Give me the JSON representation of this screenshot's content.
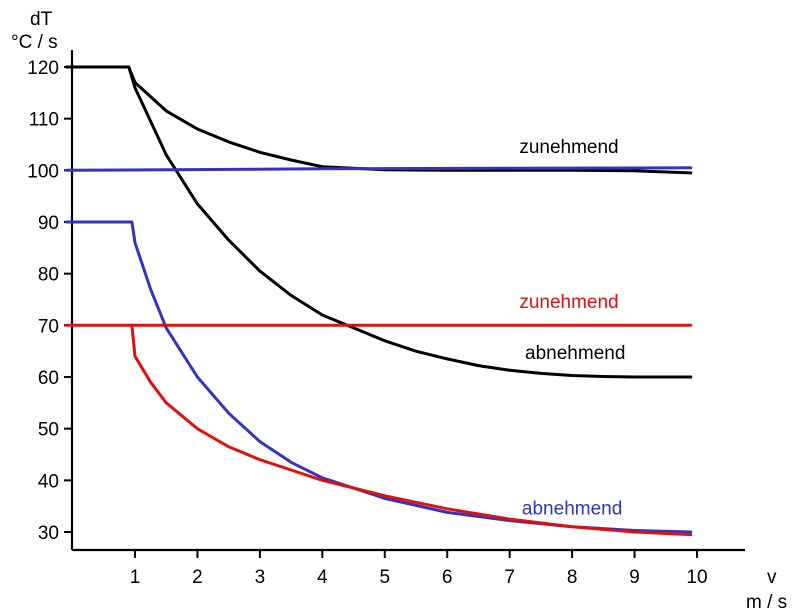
{
  "chart_data": {
    "type": "line",
    "y_unit_top": "dT",
    "y_unit_bottom": "°C / s",
    "x_unit_top": "v",
    "x_unit_bottom": "m / s",
    "xlim": [
      0,
      10.6
    ],
    "ylim": [
      27,
      128
    ],
    "x_ticks": [
      "1",
      "2",
      "3",
      "4",
      "5",
      "6",
      "7",
      "8",
      "9",
      "10"
    ],
    "y_ticks": [
      "30",
      "40",
      "50",
      "60",
      "70",
      "80",
      "90",
      "100",
      "110",
      "120"
    ],
    "series": [
      {
        "name": "zunehmend",
        "color": "#000000",
        "points": [
          [
            -0.1,
            120
          ],
          [
            0.9,
            120
          ],
          [
            1,
            117
          ],
          [
            1.5,
            111.5
          ],
          [
            2,
            108
          ],
          [
            2.5,
            105.5
          ],
          [
            3,
            103.5
          ],
          [
            3.5,
            102
          ],
          [
            4,
            100.7
          ],
          [
            5,
            100.1
          ],
          [
            6,
            100
          ],
          [
            7,
            100
          ],
          [
            8,
            100
          ],
          [
            9,
            99.9
          ],
          [
            9.9,
            99.5
          ]
        ]
      },
      {
        "name": "abnehmend",
        "color": "#000000",
        "points": [
          [
            0.9,
            120
          ],
          [
            1,
            116
          ],
          [
            1.5,
            103
          ],
          [
            2,
            93.5
          ],
          [
            2.5,
            86.5
          ],
          [
            3,
            80.5
          ],
          [
            3.5,
            75.8
          ],
          [
            4,
            72
          ],
          [
            4.5,
            69.5
          ],
          [
            5,
            67
          ],
          [
            5.5,
            65
          ],
          [
            6,
            63.5
          ],
          [
            6.5,
            62.2
          ],
          [
            7,
            61.3
          ],
          [
            7.5,
            60.7
          ],
          [
            8,
            60.3
          ],
          [
            8.5,
            60.1
          ],
          [
            9,
            60
          ],
          [
            9.9,
            60
          ]
        ]
      },
      {
        "name": "",
        "color": "#3333bb",
        "points": [
          [
            -0.1,
            100
          ],
          [
            4,
            100.3
          ],
          [
            9.9,
            100.5
          ]
        ]
      },
      {
        "name": "abnehmend",
        "color": "#3333bb",
        "points": [
          [
            -0.1,
            90
          ],
          [
            0.95,
            90
          ],
          [
            1,
            86
          ],
          [
            1.25,
            77
          ],
          [
            1.5,
            69.5
          ],
          [
            2,
            60
          ],
          [
            2.5,
            53
          ],
          [
            3,
            47.5
          ],
          [
            3.5,
            43.5
          ],
          [
            4,
            40.5
          ],
          [
            5,
            36.5
          ],
          [
            6,
            33.8
          ],
          [
            7,
            32.2
          ],
          [
            8,
            31
          ],
          [
            9,
            30.3
          ],
          [
            9.9,
            30
          ]
        ]
      },
      {
        "name": "zunehmend",
        "color": "#dd1111",
        "points": [
          [
            -0.1,
            70
          ],
          [
            9.9,
            70
          ]
        ]
      },
      {
        "name": "",
        "color": "#dd1111",
        "points": [
          [
            0.95,
            70
          ],
          [
            1,
            64
          ],
          [
            1.25,
            59
          ],
          [
            1.5,
            55
          ],
          [
            2,
            50
          ],
          [
            2.5,
            46.5
          ],
          [
            3,
            44
          ],
          [
            3.5,
            42
          ],
          [
            4,
            40
          ],
          [
            5,
            37
          ],
          [
            6,
            34.5
          ],
          [
            7,
            32.5
          ],
          [
            8,
            31
          ],
          [
            9,
            30
          ],
          [
            9.9,
            29.5
          ]
        ]
      }
    ],
    "series_labels": [
      {
        "text": "zunehmend",
        "color": "#000000",
        "x": 7.95,
        "y": 103.4
      },
      {
        "text": "abnehmend",
        "color": "#000000",
        "x": 8.05,
        "y": 63.5
      },
      {
        "text": "zunehmend",
        "color": "#dd1111",
        "x": 7.95,
        "y": 73.4
      },
      {
        "text": "abnehmend",
        "color": "#3333bb",
        "x": 8.0,
        "y": 33.4
      }
    ]
  }
}
